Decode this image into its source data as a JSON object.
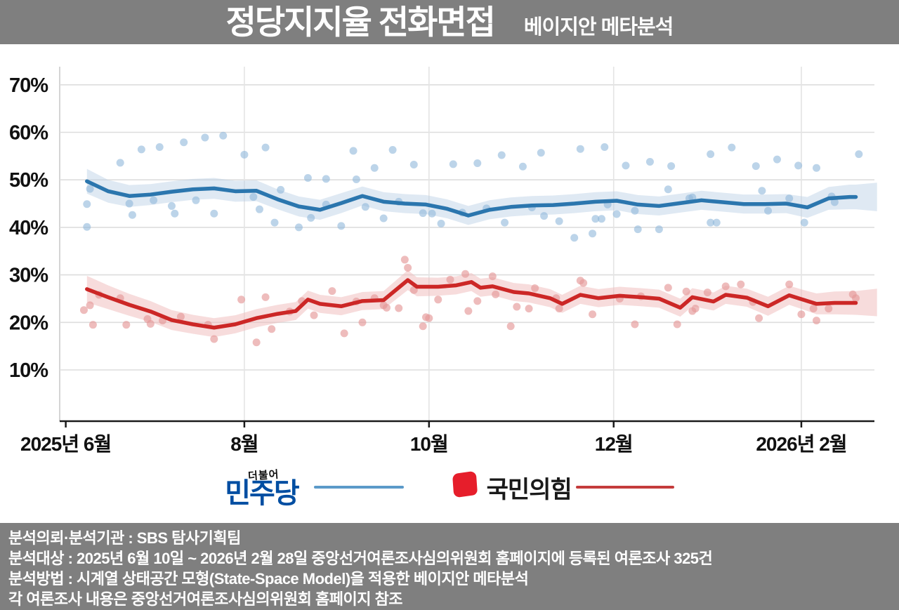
{
  "header": {
    "title": "정당지지율 전화면접",
    "subtitle": "베이지안 메타분석"
  },
  "legend": {
    "dpk": {
      "top_label": "더불어",
      "name": "민주당",
      "name_color": "#004ea2",
      "line_color": "#5b9ac9"
    },
    "ppp": {
      "name": "국민의힘",
      "icon": "ppp-red-tilted-square",
      "icon_color": "#e61e2b",
      "line_color": "#c43c3c"
    }
  },
  "footer": {
    "lines": [
      "분석의뢰·분석기관 : SBS 탐사기획팀",
      "분석대상 : 2025년 6월 10일 ~ 2026년 2월 28일 중앙선거여론조사심의위원회 홈페이지에 등록된 여론조사 325건",
      "분석방법 : 시계열 상태공간 모형(State-Space Model)을 적용한 베이지안 메타분석",
      "각 여론조사 내용은 중앙선거여론조사심의위원회 홈페이지 참조"
    ]
  },
  "chart_data": {
    "type": "line",
    "title": "정당지지율 전화면접 — 베이지안 메타분석",
    "x_unit": "days_since_2025-06-01",
    "y_unit": "percent",
    "y_ticks": [
      {
        "v": 70,
        "label": "70%"
      },
      {
        "v": 60,
        "label": "60%"
      },
      {
        "v": 50,
        "label": "50%"
      },
      {
        "v": 40,
        "label": "40%"
      },
      {
        "v": 30,
        "label": "30%"
      },
      {
        "v": 20,
        "label": "20%"
      },
      {
        "v": 10,
        "label": "10%"
      }
    ],
    "x_ticks": [
      {
        "day": 2,
        "label": "2025년 6월",
        "grid": false
      },
      {
        "day": 61,
        "label": "8월",
        "grid": true
      },
      {
        "day": 122,
        "label": "10월",
        "grid": true
      },
      {
        "day": 183,
        "label": "12월",
        "grid": true
      },
      {
        "day": 245,
        "label": "2026년 2월",
        "grid": true
      }
    ],
    "grid_color": "#dddddd",
    "axis_color": "#1a1a1a",
    "series": [
      {
        "name": "민주당",
        "line_color": "#2b76ae",
        "band_color": "#b9cfe4",
        "band_opacity": 0.45,
        "dot_color": "#8fb8da",
        "dot_opacity": 0.6,
        "points": [
          [
            9,
            49.7,
            2.6
          ],
          [
            16,
            47.6,
            2.4
          ],
          [
            23,
            46.6,
            2.3
          ],
          [
            30,
            46.9,
            2.2
          ],
          [
            37,
            47.5,
            2.2
          ],
          [
            44,
            48.0,
            2.2
          ],
          [
            51,
            48.2,
            2.2
          ],
          [
            58,
            47.6,
            2.2
          ],
          [
            65,
            47.7,
            2.2
          ],
          [
            72,
            45.9,
            2.1
          ],
          [
            79,
            44.4,
            2.1
          ],
          [
            86,
            43.7,
            2.1
          ],
          [
            93,
            45.1,
            2.1
          ],
          [
            100,
            46.6,
            2.0
          ],
          [
            107,
            45.4,
            2.0
          ],
          [
            114,
            45.0,
            2.0
          ],
          [
            121,
            44.8,
            2.0
          ],
          [
            128,
            43.9,
            2.0
          ],
          [
            135,
            42.5,
            2.0
          ],
          [
            142,
            43.7,
            2.0
          ],
          [
            149,
            44.3,
            2.0
          ],
          [
            156,
            44.6,
            2.0
          ],
          [
            163,
            44.7,
            2.0
          ],
          [
            170,
            45.0,
            2.0
          ],
          [
            177,
            45.4,
            2.0
          ],
          [
            184,
            45.6,
            2.0
          ],
          [
            191,
            44.8,
            2.0
          ],
          [
            198,
            44.5,
            2.0
          ],
          [
            205,
            45.1,
            2.0
          ],
          [
            212,
            45.7,
            2.0
          ],
          [
            219,
            45.3,
            2.0
          ],
          [
            226,
            44.9,
            2.0
          ],
          [
            233,
            44.9,
            2.0
          ],
          [
            240,
            45.0,
            2.0
          ],
          [
            247,
            44.2,
            2.2
          ],
          [
            254,
            46.1,
            2.4
          ],
          [
            261,
            46.4,
            2.6
          ],
          [
            263,
            46.4,
            2.6
          ]
        ],
        "band_tail": [
          270,
          46.4,
          3.0
        ],
        "polls": [
          [
            9,
            44.9
          ],
          [
            10,
            48.1
          ],
          [
            9,
            40.1
          ],
          [
            20,
            53.6
          ],
          [
            23,
            45.0
          ],
          [
            24,
            42.6
          ],
          [
            27,
            56.4
          ],
          [
            31,
            45.7
          ],
          [
            33,
            56.9
          ],
          [
            37,
            44.5
          ],
          [
            38,
            42.9
          ],
          [
            41,
            57.9
          ],
          [
            45,
            45.7
          ],
          [
            48,
            58.9
          ],
          [
            51,
            42.9
          ],
          [
            54,
            59.3
          ],
          [
            61,
            55.3
          ],
          [
            64,
            46.4
          ],
          [
            66,
            43.8
          ],
          [
            68,
            56.8
          ],
          [
            71,
            41.0
          ],
          [
            73,
            47.9
          ],
          [
            79,
            40.0
          ],
          [
            82,
            50.4
          ],
          [
            83,
            42.0
          ],
          [
            88,
            50.2
          ],
          [
            88,
            44.8
          ],
          [
            93,
            40.3
          ],
          [
            97,
            56.1
          ],
          [
            98,
            50.1
          ],
          [
            101,
            44.3
          ],
          [
            104,
            52.5
          ],
          [
            107,
            41.9
          ],
          [
            110,
            56.3
          ],
          [
            112,
            45.4
          ],
          [
            117,
            53.2
          ],
          [
            120,
            43.0
          ],
          [
            123,
            42.9
          ],
          [
            126,
            40.8
          ],
          [
            130,
            53.3
          ],
          [
            133,
            43.1
          ],
          [
            138,
            53.5
          ],
          [
            141,
            44.0
          ],
          [
            146,
            55.2
          ],
          [
            147,
            41.0
          ],
          [
            153,
            52.8
          ],
          [
            156,
            44.2
          ],
          [
            159,
            55.7
          ],
          [
            160,
            42.4
          ],
          [
            165,
            41.3
          ],
          [
            170,
            37.8
          ],
          [
            172,
            56.5
          ],
          [
            176,
            38.7
          ],
          [
            177,
            41.8
          ],
          [
            179,
            41.8
          ],
          [
            180,
            56.9
          ],
          [
            181,
            44.8
          ],
          [
            184,
            42.8
          ],
          [
            187,
            53.0
          ],
          [
            190,
            43.5
          ],
          [
            191,
            39.6
          ],
          [
            195,
            53.8
          ],
          [
            198,
            39.6
          ],
          [
            201,
            48.0
          ],
          [
            202,
            52.9
          ],
          [
            208,
            46.1
          ],
          [
            209,
            46.3
          ],
          [
            215,
            55.4
          ],
          [
            215,
            41.0
          ],
          [
            217,
            41.0
          ],
          [
            222,
            56.8
          ],
          [
            230,
            52.9
          ],
          [
            232,
            47.7
          ],
          [
            234,
            43.5
          ],
          [
            237,
            54.3
          ],
          [
            241,
            46.1
          ],
          [
            244,
            53.0
          ],
          [
            246,
            41.0
          ],
          [
            250,
            52.5
          ],
          [
            255,
            46.5
          ],
          [
            256,
            45.3
          ],
          [
            264,
            55.4
          ]
        ]
      },
      {
        "name": "국민의힘",
        "line_color": "#cc2726",
        "band_color": "#f0b9b9",
        "band_opacity": 0.5,
        "dot_color": "#e59898",
        "dot_opacity": 0.65,
        "points": [
          [
            9,
            27.0,
            2.8
          ],
          [
            16,
            25.3,
            2.5
          ],
          [
            23,
            23.7,
            2.3
          ],
          [
            30,
            22.3,
            2.2
          ],
          [
            37,
            20.5,
            2.1
          ],
          [
            44,
            19.6,
            2.0
          ],
          [
            51,
            18.9,
            2.0
          ],
          [
            58,
            19.6,
            1.9
          ],
          [
            65,
            20.9,
            1.9
          ],
          [
            72,
            21.8,
            1.9
          ],
          [
            78,
            22.4,
            1.9
          ],
          [
            82,
            24.8,
            1.9
          ],
          [
            86,
            23.9,
            1.9
          ],
          [
            93,
            23.4,
            1.9
          ],
          [
            100,
            24.5,
            1.9
          ],
          [
            107,
            24.7,
            1.9
          ],
          [
            115,
            28.9,
            2.1
          ],
          [
            118,
            27.5,
            2.0
          ],
          [
            125,
            27.5,
            1.9
          ],
          [
            131,
            27.8,
            1.9
          ],
          [
            136,
            28.5,
            1.9
          ],
          [
            139,
            27.3,
            1.9
          ],
          [
            143,
            27.6,
            1.9
          ],
          [
            150,
            26.4,
            1.9
          ],
          [
            155,
            26.1,
            1.9
          ],
          [
            162,
            25.1,
            1.9
          ],
          [
            166,
            23.9,
            1.9
          ],
          [
            172,
            25.8,
            1.9
          ],
          [
            178,
            25.1,
            1.9
          ],
          [
            185,
            25.6,
            1.9
          ],
          [
            192,
            25.3,
            1.9
          ],
          [
            198,
            25.0,
            1.9
          ],
          [
            205,
            23.1,
            1.9
          ],
          [
            209,
            25.3,
            1.9
          ],
          [
            216,
            24.4,
            1.9
          ],
          [
            220,
            25.8,
            1.9
          ],
          [
            227,
            25.2,
            1.9
          ],
          [
            234,
            23.4,
            2.0
          ],
          [
            241,
            25.7,
            2.0
          ],
          [
            247,
            24.5,
            2.1
          ],
          [
            250,
            23.9,
            2.2
          ],
          [
            256,
            24.1,
            2.4
          ],
          [
            263,
            24.1,
            2.5
          ]
        ],
        "band_tail": [
          270,
          24.2,
          2.9
        ],
        "polls": [
          [
            8,
            22.6
          ],
          [
            10,
            23.6
          ],
          [
            11,
            19.5
          ],
          [
            13,
            25.8
          ],
          [
            20,
            25.1
          ],
          [
            22,
            19.5
          ],
          [
            29,
            20.7
          ],
          [
            30,
            19.7
          ],
          [
            34,
            20.4
          ],
          [
            40,
            21.2
          ],
          [
            49,
            19.5
          ],
          [
            51,
            16.5
          ],
          [
            60,
            24.8
          ],
          [
            65,
            15.8
          ],
          [
            68,
            25.3
          ],
          [
            70,
            18.6
          ],
          [
            76,
            22.3
          ],
          [
            80,
            24.5
          ],
          [
            84,
            21.5
          ],
          [
            90,
            26.6
          ],
          [
            94,
            17.7
          ],
          [
            98,
            24.4
          ],
          [
            100,
            20.0
          ],
          [
            104,
            25.1
          ],
          [
            107,
            23.6
          ],
          [
            108,
            23.1
          ],
          [
            112,
            23.0
          ],
          [
            114,
            33.2
          ],
          [
            115,
            31.5
          ],
          [
            117,
            26.8
          ],
          [
            120,
            19.2
          ],
          [
            121,
            21.1
          ],
          [
            122,
            20.9
          ],
          [
            125,
            24.8
          ],
          [
            129,
            29.0
          ],
          [
            134,
            30.2
          ],
          [
            135,
            22.4
          ],
          [
            138,
            24.5
          ],
          [
            143,
            29.7
          ],
          [
            144,
            25.9
          ],
          [
            149,
            19.2
          ],
          [
            151,
            23.3
          ],
          [
            155,
            22.9
          ],
          [
            157,
            27.2
          ],
          [
            164,
            25.1
          ],
          [
            165,
            22.9
          ],
          [
            172,
            28.8
          ],
          [
            173,
            28.3
          ],
          [
            176,
            21.7
          ],
          [
            185,
            25.0
          ],
          [
            190,
            19.6
          ],
          [
            192,
            25.5
          ],
          [
            201,
            27.3
          ],
          [
            204,
            19.6
          ],
          [
            207,
            26.5
          ],
          [
            209,
            22.4
          ],
          [
            210,
            22.9
          ],
          [
            214,
            26.3
          ],
          [
            220,
            27.6
          ],
          [
            225,
            28.0
          ],
          [
            229,
            24.3
          ],
          [
            231,
            20.9
          ],
          [
            241,
            28.0
          ],
          [
            245,
            21.7
          ],
          [
            249,
            22.9
          ],
          [
            250,
            20.4
          ],
          [
            254,
            22.9
          ],
          [
            262,
            25.9
          ],
          [
            263,
            25.1
          ]
        ]
      }
    ],
    "layout": {
      "legend_position": "bottom",
      "grid": true,
      "y_range_shown": [
        5,
        75
      ]
    }
  }
}
